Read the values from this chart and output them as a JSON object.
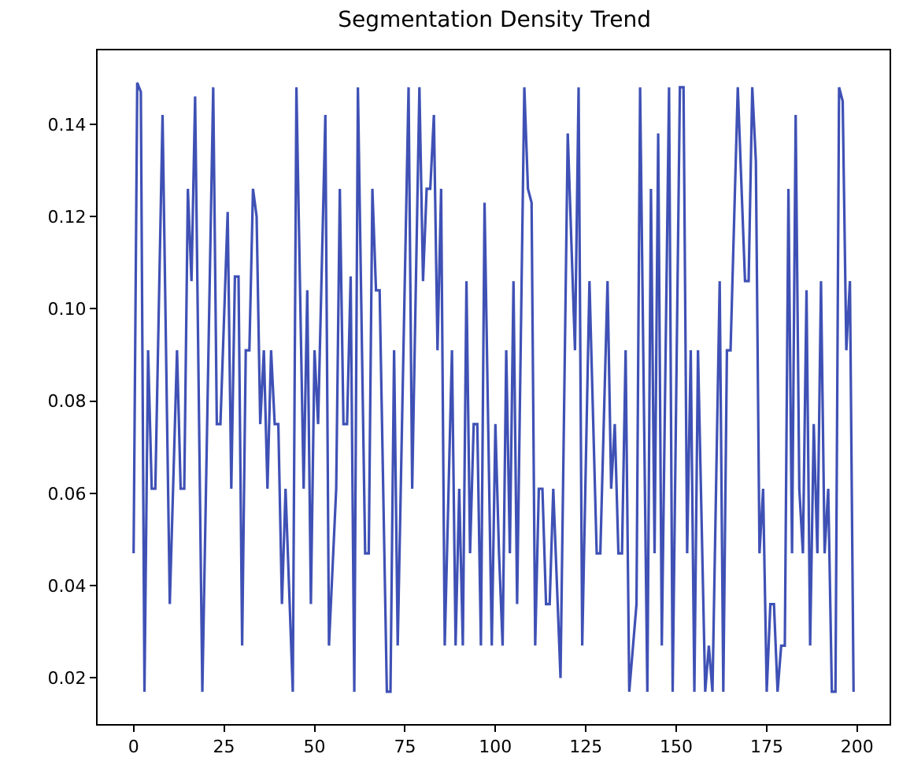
{
  "chart_data": {
    "type": "line",
    "title": "Segmentation Density Trend",
    "color": "#3f51b5",
    "line_style": "solid",
    "x": [
      0,
      1,
      2,
      3,
      4,
      5,
      6,
      8,
      10,
      12,
      13,
      14,
      15,
      16,
      17,
      19,
      22,
      23,
      24,
      26,
      27,
      28,
      29,
      30,
      31,
      32,
      33,
      34,
      35,
      36,
      37,
      38,
      39,
      40,
      41,
      42,
      44,
      45,
      47,
      48,
      49,
      50,
      51,
      53,
      54,
      56,
      57,
      58,
      59,
      60,
      61,
      62,
      64,
      65,
      66,
      67,
      68,
      70,
      71,
      72,
      73,
      76,
      77,
      79,
      80,
      81,
      82,
      83,
      84,
      85,
      86,
      88,
      89,
      90,
      91,
      92,
      93,
      94,
      95,
      96,
      97,
      99,
      100,
      101,
      102,
      103,
      104,
      105,
      106,
      108,
      109,
      110,
      111,
      112,
      113,
      114,
      115,
      116,
      118,
      120,
      122,
      123,
      124,
      126,
      128,
      129,
      131,
      132,
      133,
      134,
      135,
      136,
      137,
      139,
      140,
      142,
      143,
      144,
      145,
      146,
      148,
      149,
      151,
      152,
      153,
      154,
      155,
      156,
      158,
      159,
      160,
      162,
      163,
      164,
      165,
      167,
      169,
      170,
      171,
      172,
      173,
      174,
      175,
      176,
      177,
      178,
      179,
      180,
      181,
      182,
      183,
      184,
      185,
      186,
      187,
      188,
      189,
      190,
      191,
      192,
      193,
      194,
      195,
      196,
      197,
      198,
      199
    ],
    "values": [
      0.047,
      0.149,
      0.147,
      0.017,
      0.091,
      0.061,
      0.061,
      0.142,
      0.036,
      0.091,
      0.061,
      0.061,
      0.126,
      0.106,
      0.146,
      0.017,
      0.148,
      0.075,
      0.075,
      0.121,
      0.061,
      0.107,
      0.107,
      0.027,
      0.091,
      0.091,
      0.126,
      0.12,
      0.075,
      0.091,
      0.061,
      0.091,
      0.075,
      0.075,
      0.036,
      0.061,
      0.017,
      0.148,
      0.061,
      0.104,
      0.036,
      0.091,
      0.075,
      0.142,
      0.027,
      0.061,
      0.126,
      0.075,
      0.075,
      0.107,
      0.017,
      0.148,
      0.047,
      0.047,
      0.126,
      0.104,
      0.104,
      0.017,
      0.017,
      0.091,
      0.027,
      0.148,
      0.061,
      0.148,
      0.106,
      0.126,
      0.126,
      0.142,
      0.091,
      0.126,
      0.027,
      0.091,
      0.027,
      0.061,
      0.027,
      0.106,
      0.047,
      0.075,
      0.075,
      0.027,
      0.123,
      0.027,
      0.075,
      0.047,
      0.027,
      0.091,
      0.047,
      0.106,
      0.036,
      0.148,
      0.126,
      0.123,
      0.027,
      0.061,
      0.061,
      0.036,
      0.036,
      0.061,
      0.02,
      0.138,
      0.091,
      0.148,
      0.027,
      0.106,
      0.047,
      0.047,
      0.106,
      0.061,
      0.075,
      0.047,
      0.047,
      0.091,
      0.017,
      0.036,
      0.148,
      0.017,
      0.126,
      0.047,
      0.138,
      0.027,
      0.148,
      0.017,
      0.148,
      0.148,
      0.047,
      0.091,
      0.017,
      0.091,
      0.017,
      0.027,
      0.017,
      0.106,
      0.017,
      0.091,
      0.091,
      0.148,
      0.106,
      0.106,
      0.148,
      0.132,
      0.047,
      0.061,
      0.017,
      0.036,
      0.036,
      0.017,
      0.027,
      0.027,
      0.126,
      0.047,
      0.142,
      0.061,
      0.047,
      0.104,
      0.027,
      0.075,
      0.047,
      0.106,
      0.047,
      0.061,
      0.017,
      0.017,
      0.148,
      0.145,
      0.091,
      0.106,
      0.017
    ],
    "xlim": [
      -9.95,
      208.95
    ],
    "xticks": [
      0,
      25,
      50,
      75,
      100,
      125,
      150,
      175,
      200
    ],
    "ylim": [
      0.01,
      0.156
    ],
    "yticks": [
      0.02,
      0.04,
      0.06,
      0.08,
      {
        "value": 0.1,
        "label": "0.10"
      },
      0.12,
      0.14
    ]
  }
}
